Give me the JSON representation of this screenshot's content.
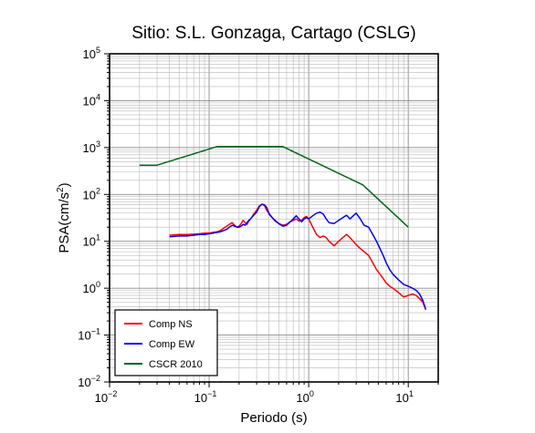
{
  "chart_data": {
    "type": "line",
    "title": "Sitio: S.L. Gonzaga, Cartago (CSLG)",
    "xlabel": "Periodo (s)",
    "ylabel": {
      "base": "PSA(cm/s",
      "sup": "2",
      "end": ")"
    },
    "xscale": "log",
    "yscale": "log",
    "xlim": [
      0.01,
      20
    ],
    "ylim": [
      0.01,
      100000
    ],
    "grid": true,
    "legend_position": "bottom-left",
    "x_ticks": [
      {
        "value": 0.01,
        "base": "10",
        "exp": "−2"
      },
      {
        "value": 0.1,
        "base": "10",
        "exp": "−1"
      },
      {
        "value": 1,
        "base": "10",
        "exp": "0"
      },
      {
        "value": 10,
        "base": "10",
        "exp": "1"
      }
    ],
    "y_ticks": [
      {
        "value": 0.01,
        "base": "10",
        "exp": "−2"
      },
      {
        "value": 0.1,
        "base": "10",
        "exp": "−1"
      },
      {
        "value": 1,
        "base": "10",
        "exp": "0"
      },
      {
        "value": 10,
        "base": "10",
        "exp": "1"
      },
      {
        "value": 100,
        "base": "10",
        "exp": "2"
      },
      {
        "value": 1000,
        "base": "10",
        "exp": "3"
      },
      {
        "value": 10000,
        "base": "10",
        "exp": "4"
      },
      {
        "value": 100000,
        "base": "10",
        "exp": "5"
      }
    ],
    "series": [
      {
        "name": "Comp NS",
        "color": "#ff0000",
        "x": [
          0.04,
          0.05,
          0.06,
          0.07,
          0.08,
          0.09,
          0.1,
          0.11,
          0.12,
          0.13,
          0.14,
          0.15,
          0.16,
          0.17,
          0.18,
          0.19,
          0.2,
          0.21,
          0.22,
          0.23,
          0.24,
          0.25,
          0.26,
          0.27,
          0.28,
          0.3,
          0.32,
          0.34,
          0.36,
          0.38,
          0.4,
          0.43,
          0.46,
          0.5,
          0.55,
          0.6,
          0.65,
          0.7,
          0.75,
          0.8,
          0.85,
          0.9,
          0.95,
          1.0,
          1.1,
          1.2,
          1.3,
          1.4,
          1.5,
          1.6,
          1.8,
          2.0,
          2.2,
          2.4,
          2.6,
          2.8,
          3.0,
          3.3,
          3.6,
          4.0,
          4.4,
          4.8,
          5.2,
          5.6,
          6.0,
          6.5,
          7.0,
          8.0,
          9.0,
          10.0,
          11.0,
          12.0,
          13.0,
          14.0,
          15.0
        ],
        "values": [
          13.5,
          14.0,
          14.0,
          14.2,
          14.5,
          15.0,
          15.0,
          15.5,
          16.0,
          17.0,
          19.0,
          21.0,
          23.0,
          25.0,
          22.0,
          20.0,
          21.0,
          24.0,
          28.0,
          25.0,
          23.0,
          27.0,
          30.0,
          33.0,
          38.0,
          46.0,
          57.0,
          62.0,
          58.0,
          45.0,
          40.0,
          32.0,
          27.0,
          24.0,
          22.0,
          23.0,
          26.0,
          28.0,
          30.0,
          27.0,
          28.0,
          32.0,
          34.0,
          30.0,
          20.0,
          14.0,
          12.0,
          13.0,
          12.0,
          10.0,
          8.0,
          10.0,
          12.0,
          14.0,
          12.0,
          10.0,
          8.5,
          7.0,
          6.0,
          5.0,
          3.5,
          2.5,
          2.0,
          1.6,
          1.3,
          1.1,
          1.0,
          0.8,
          0.65,
          0.7,
          0.75,
          0.7,
          0.6,
          0.5,
          0.35
        ]
      },
      {
        "name": "Comp EW",
        "color": "#0000ff",
        "x": [
          0.04,
          0.05,
          0.06,
          0.07,
          0.08,
          0.09,
          0.1,
          0.11,
          0.12,
          0.13,
          0.14,
          0.15,
          0.16,
          0.17,
          0.18,
          0.19,
          0.2,
          0.21,
          0.22,
          0.23,
          0.24,
          0.25,
          0.26,
          0.27,
          0.28,
          0.3,
          0.32,
          0.34,
          0.36,
          0.38,
          0.4,
          0.43,
          0.46,
          0.5,
          0.55,
          0.6,
          0.65,
          0.7,
          0.75,
          0.8,
          0.85,
          0.9,
          0.95,
          1.0,
          1.1,
          1.2,
          1.3,
          1.4,
          1.5,
          1.6,
          1.8,
          2.0,
          2.2,
          2.4,
          2.6,
          2.8,
          3.0,
          3.3,
          3.6,
          4.0,
          4.4,
          4.8,
          5.2,
          5.6,
          6.0,
          6.5,
          7.0,
          8.0,
          9.0,
          10.0,
          11.0,
          12.0,
          13.0,
          14.0,
          15.0
        ],
        "values": [
          12.5,
          13.0,
          13.0,
          13.5,
          14.0,
          14.0,
          14.5,
          15.0,
          15.5,
          16.0,
          17.0,
          18.0,
          20.0,
          22.0,
          21.0,
          20.0,
          20.0,
          21.0,
          23.0,
          22.0,
          25.0,
          28.0,
          30.0,
          33.0,
          36.0,
          42.0,
          55.0,
          62.0,
          60.0,
          52.0,
          38.0,
          32.0,
          28.0,
          24.0,
          21.0,
          22.0,
          26.0,
          30.0,
          35.0,
          30.0,
          26.0,
          30.0,
          32.0,
          30.0,
          35.0,
          40.0,
          42.0,
          38.0,
          30.0,
          25.0,
          24.0,
          28.0,
          32.0,
          36.0,
          30.0,
          35.0,
          40.0,
          30.0,
          22.0,
          20.0,
          14.0,
          10.0,
          7.0,
          5.0,
          3.5,
          2.5,
          2.0,
          1.5,
          1.2,
          1.1,
          1.0,
          0.9,
          0.75,
          0.55,
          0.35
        ]
      },
      {
        "name": "CSCR 2010",
        "color": "#00661a",
        "x": [
          0.02,
          0.03,
          0.12,
          0.55,
          3.5,
          10.0
        ],
        "values": [
          420,
          420,
          1050,
          1050,
          160,
          20
        ]
      }
    ]
  }
}
